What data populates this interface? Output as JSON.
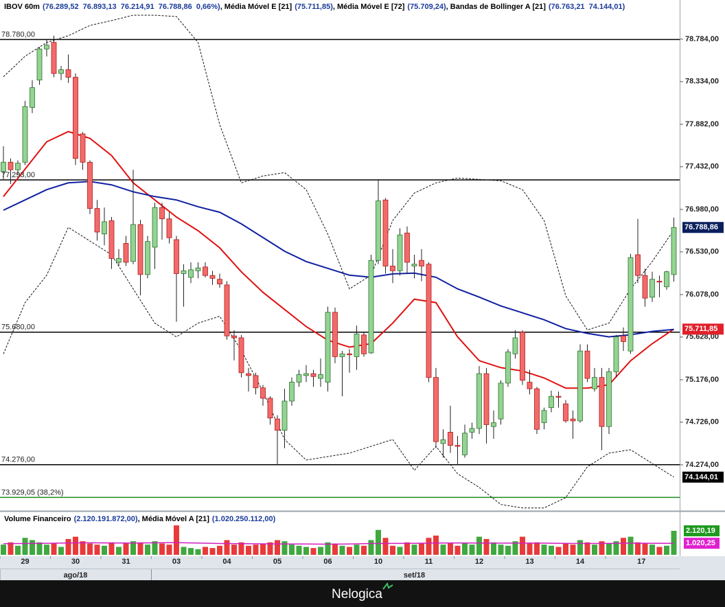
{
  "chart_data": {
    "type": "candlestick",
    "title_parts": [
      {
        "text": "IBOV 60m",
        "color": "#000000"
      },
      {
        "text": "(76.289,52  76.893,13  76.214,91  76.788,86  0,66%)",
        "color": "#1a3a9a"
      },
      {
        "text": ", Média Móvel E [21]",
        "color": "#000000"
      },
      {
        "text": "(75.711,85)",
        "color": "#1a3a9a"
      },
      {
        "text": ", Média Móvel E [72]",
        "color": "#000000"
      },
      {
        "text": "(75.709,24)",
        "color": "#1a3a9a"
      },
      {
        "text": ", Bandas de Bollinger A [21]",
        "color": "#000000"
      },
      {
        "text": "(76.763,21  74.144,01)",
        "color": "#1a3a9a"
      }
    ],
    "categories": [
      "29",
      null,
      null,
      null,
      null,
      null,
      null,
      "30",
      null,
      null,
      null,
      null,
      null,
      null,
      "31",
      null,
      null,
      null,
      null,
      null,
      null,
      "03",
      null,
      null,
      null,
      null,
      null,
      null,
      "04",
      null,
      null,
      null,
      null,
      null,
      null,
      "05",
      null,
      null,
      null,
      null,
      null,
      null,
      "06",
      null,
      null,
      null,
      null,
      null,
      null,
      "10",
      null,
      null,
      null,
      null,
      null,
      null,
      "11",
      null,
      null,
      null,
      null,
      null,
      null,
      "12",
      null,
      null,
      null,
      null,
      null,
      null,
      "13",
      null,
      null,
      null,
      null,
      null,
      null,
      "14",
      null,
      null,
      null,
      null,
      null,
      null,
      "17",
      null,
      null,
      null,
      null,
      null,
      null,
      null,
      null,
      null
    ],
    "month_categories": [
      "ago/18",
      null,
      null,
      null,
      null,
      null,
      null,
      null,
      null,
      null,
      null,
      null,
      null,
      null,
      null,
      null,
      null,
      null,
      null,
      null,
      null,
      "set/18",
      null,
      null,
      null,
      null,
      null,
      null,
      null,
      null,
      null,
      null,
      null,
      null,
      null,
      null,
      null,
      null,
      null,
      null,
      null,
      null,
      null,
      null,
      null,
      null,
      null,
      null,
      null,
      null,
      null,
      null,
      null,
      null,
      null,
      null,
      null,
      null,
      null,
      null,
      null,
      null,
      null,
      null,
      null,
      null,
      null,
      null,
      null,
      null,
      null,
      null,
      null,
      null,
      null,
      null,
      null,
      null,
      null,
      null,
      null,
      null,
      null,
      null,
      null,
      null,
      null,
      null,
      null,
      null,
      null,
      null,
      null,
      null
    ],
    "open": [
      77380,
      77480,
      77400,
      77480,
      78060,
      78350,
      78680,
      78750,
      78420,
      78460,
      78380,
      77780,
      77480,
      76990,
      76720,
      76860,
      76420,
      76620,
      76430,
      76820,
      76290,
      76580,
      77000,
      76880,
      76660,
      76300,
      76260,
      76330,
      76370,
      76280,
      76240,
      76180,
      75640,
      75620,
      75240,
      75220,
      75090,
      74980,
      74760,
      74640,
      74950,
      75150,
      75220,
      75240,
      75190,
      75150,
      75890,
      75420,
      75450,
      75420,
      75650,
      75460,
      76440,
      77080,
      76380,
      76330,
      76730,
      76380,
      76440,
      76400,
      75200,
      74500,
      74620,
      74480,
      74380,
      74620,
      74660,
      75240,
      74680,
      74760,
      75140,
      75450,
      75680,
      75150,
      75080,
      74720,
      74880,
      75000,
      74920,
      74760,
      74740,
      75480,
      75080,
      75200,
      74680,
      75260,
      75640,
      75480,
      76500,
      76280,
      76050,
      76220,
      76160,
      76289.52
    ],
    "high": [
      77650,
      77520,
      77500,
      78130,
      78350,
      78700,
      78780,
      78820,
      78500,
      78620,
      78420,
      77800,
      77500,
      77080,
      77000,
      76900,
      76560,
      76700,
      77400,
      76870,
      76700,
      77050,
      77050,
      76950,
      76700,
      76400,
      76420,
      76420,
      76420,
      76330,
      76300,
      76220,
      75700,
      75650,
      75300,
      75250,
      75120,
      75000,
      74800,
      75080,
      75200,
      75280,
      75330,
      75280,
      75400,
      75950,
      75940,
      75480,
      75500,
      75750,
      75680,
      76500,
      77300,
      77100,
      76560,
      76780,
      76800,
      76500,
      76560,
      76420,
      75300,
      74650,
      74900,
      74580,
      74700,
      74720,
      75320,
      75300,
      74850,
      75170,
      75500,
      75700,
      75700,
      75280,
      75100,
      74880,
      75060,
      75050,
      74960,
      74850,
      75550,
      75550,
      75300,
      75300,
      75300,
      75650,
      75730,
      76510,
      76880,
      76350,
      76320,
      76280,
      76330,
      76893.13
    ],
    "low": [
      77300,
      77250,
      77350,
      77450,
      78000,
      78300,
      78600,
      78380,
      78350,
      78320,
      77450,
      77400,
      76930,
      76650,
      76600,
      76350,
      76380,
      76380,
      76400,
      76070,
      76250,
      76350,
      76660,
      76620,
      75790,
      75950,
      76200,
      76250,
      76260,
      76180,
      76150,
      75600,
      75380,
      75200,
      75050,
      75020,
      74900,
      74700,
      74274,
      74450,
      74900,
      75100,
      75150,
      75100,
      75100,
      75050,
      75350,
      75000,
      75250,
      75280,
      75420,
      75450,
      76400,
      76300,
      76200,
      76280,
      76300,
      76250,
      76220,
      75150,
      74450,
      74350,
      74400,
      74274,
      74350,
      74550,
      74600,
      74500,
      74550,
      74700,
      75100,
      75400,
      75120,
      75020,
      74600,
      74650,
      74830,
      74880,
      74720,
      74550,
      74720,
      75150,
      75050,
      74430,
      74600,
      75200,
      75480,
      75450,
      76200,
      75950,
      76000,
      76050,
      76130,
      76214.91
    ],
    "close": [
      77480,
      77400,
      77470,
      78070,
      78270,
      78680,
      78720,
      78420,
      78460,
      78380,
      77520,
      77480,
      76990,
      76740,
      76850,
      76460,
      76460,
      76420,
      76820,
      76290,
      76640,
      77000,
      76880,
      76680,
      76300,
      76330,
      76340,
      76360,
      76280,
      76250,
      76190,
      75640,
      75620,
      75250,
      75220,
      75090,
      74980,
      74770,
      74640,
      74950,
      75150,
      75230,
      75240,
      75210,
      75230,
      75890,
      75420,
      75450,
      75440,
      75660,
      75450,
      76440,
      77070,
      76380,
      76330,
      76710,
      76420,
      76400,
      76380,
      75200,
      74520,
      74540,
      74480,
      74470,
      74610,
      74660,
      75240,
      74700,
      74720,
      75140,
      75470,
      75620,
      75170,
      75080,
      74650,
      74850,
      75000,
      74990,
      74740,
      74740,
      75480,
      75190,
      75200,
      74680,
      75260,
      75630,
      75580,
      76470,
      76280,
      76040,
      76240,
      76210,
      76320,
      76788.86
    ],
    "up_color": "#93d493",
    "down_color": "#f26b6b",
    "line_x": [
      0,
      3,
      6,
      9,
      12,
      15,
      18,
      21,
      24,
      27,
      30,
      33,
      36,
      39,
      42,
      45,
      48,
      51,
      54,
      57,
      60,
      63,
      66,
      69,
      72,
      75,
      78,
      81,
      84,
      87,
      90,
      93
    ],
    "lines": [
      {
        "color": "#e01010",
        "dashed": false,
        "values": [
          77116,
          77407,
          77696,
          77805,
          77733,
          77551,
          77261,
          77080,
          76899,
          76754,
          76573,
          76319,
          76102,
          75920,
          75739,
          75594,
          75521,
          75558,
          75775,
          76029,
          75993,
          75630,
          75377,
          75304,
          75268,
          75195,
          75086,
          75086,
          75123,
          75377,
          75558,
          75711.85
        ]
      },
      {
        "color": "#1020a0",
        "dashed": false,
        "values": [
          76972,
          77080,
          77189,
          77261,
          77276,
          77240,
          77167,
          77116,
          77080,
          77008,
          76950,
          76827,
          76682,
          76537,
          76428,
          76356,
          76283,
          76261,
          76297,
          76305,
          76261,
          76138,
          76051,
          75957,
          75884,
          75811,
          75717,
          75667,
          75630,
          75652,
          75688,
          75709.24
        ]
      },
      {
        "color": "#111111",
        "dashed": true,
        "values": [
          78385,
          78603,
          78748,
          78820,
          78929,
          78980,
          79038,
          79038,
          79023,
          78748,
          77878,
          77261,
          77334,
          77370,
          77189,
          76718,
          76138,
          76283,
          76863,
          77153,
          77261,
          77312,
          77298,
          77283,
          77189,
          76863,
          76065,
          75703,
          75775,
          76138,
          76428,
          76763.21
        ]
      },
      {
        "color": "#111111",
        "dashed": true,
        "values": [
          75449,
          75993,
          76283,
          76790,
          76645,
          76500,
          76138,
          75775,
          75630,
          75775,
          75848,
          75485,
          75050,
          74543,
          74325,
          74362,
          74398,
          74470,
          74543,
          74216,
          74470,
          74180,
          74035,
          73854,
          73818,
          73818,
          73927,
          74253,
          74398,
          74434,
          74289,
          74144.01
        ]
      }
    ],
    "ylim": [
      73801,
      79053
    ],
    "yticks": [
      {
        "value": 78784,
        "label": "78.784,00"
      },
      {
        "value": 78334,
        "label": "78.334,00"
      },
      {
        "value": 77882,
        "label": "77.882,00"
      },
      {
        "value": 77432,
        "label": "77.432,00"
      },
      {
        "value": 76980,
        "label": "76.980,00"
      },
      {
        "value": 76530,
        "label": "76.530,00"
      },
      {
        "value": 76078,
        "label": "76.078,00"
      },
      {
        "value": 75628,
        "label": "75.628,00"
      },
      {
        "value": 75176,
        "label": "75.176,00"
      },
      {
        "value": 74726,
        "label": "74.726,00"
      },
      {
        "value": 74274,
        "label": "74.274,00"
      }
    ],
    "levels": [
      {
        "value": 78780,
        "label": "78.780,00",
        "color": "#000000"
      },
      {
        "value": 77293,
        "label": "77.293,00",
        "color": "#000000"
      },
      {
        "value": 75680,
        "label": "75.680,00",
        "color": "#000000"
      },
      {
        "value": 74276,
        "label": "74.276,00",
        "color": "#000000"
      },
      {
        "value": 73929.05,
        "label": "73.929,05 (38,2%)",
        "color": "#1a8a1a"
      }
    ],
    "price_tags": [
      {
        "value": 76788.86,
        "label": "76.788,86",
        "color": "#0b1f5c"
      },
      {
        "value": 75711.85,
        "label": "75.711,85",
        "color": "#e0202a"
      },
      {
        "value": 74144.01,
        "label": "74.144,01",
        "color": "#000000"
      }
    ],
    "volume": {
      "title_parts": [
        {
          "text": "Volume Financeiro",
          "color": "#000000"
        },
        {
          "text": "(2.120.191.872,00)",
          "color": "#1a3a9a"
        },
        {
          "text": ", Média Móvel A [21]",
          "color": "#000000"
        },
        {
          "text": "(1.020.250.112,00)",
          "color": "#1a3a9a"
        }
      ],
      "values": [
        900,
        1100,
        800,
        1500,
        1300,
        1100,
        900,
        1000,
        700,
        1400,
        1600,
        1200,
        1000,
        900,
        800,
        1100,
        700,
        1000,
        1200,
        1100,
        900,
        1200,
        1000,
        900,
        2600,
        700,
        600,
        500,
        700,
        600,
        800,
        1300,
        900,
        1100,
        800,
        900,
        1000,
        1100,
        1300,
        1200,
        900,
        800,
        700,
        600,
        700,
        1100,
        1000,
        800,
        700,
        900,
        800,
        1300,
        2200,
        1500,
        800,
        700,
        1100,
        900,
        1000,
        1500,
        1700,
        900,
        1000,
        800,
        1000,
        900,
        1600,
        1400,
        1100,
        900,
        800,
        1200,
        1600,
        1000,
        1100,
        900,
        800,
        700,
        1000,
        900,
        1300,
        1100,
        900,
        1200,
        1000,
        1200,
        1500,
        1600,
        1100,
        1000,
        900,
        700,
        800,
        2120.19
      ],
      "ma": [
        980,
        1000,
        1020,
        1050,
        1060,
        1050,
        1040,
        1060,
        1080,
        1040,
        1000,
        980,
        970,
        960,
        950,
        940,
        960,
        1000,
        1010,
        1020,
        1040,
        1050,
        1040,
        1030,
        1040,
        1030,
        1010,
        1000,
        1010,
        1030,
        1020,
        1020.25
      ],
      "ma_color": "#d020c0",
      "ylim": [
        0,
        3640
      ],
      "tags": [
        {
          "value": 2120.19,
          "label": "2.120,19",
          "color": "#1f9a1f"
        },
        {
          "value": 1020.25,
          "label": "1.020,25",
          "color": "#e020d0"
        }
      ]
    },
    "footer": "Nelogica"
  }
}
